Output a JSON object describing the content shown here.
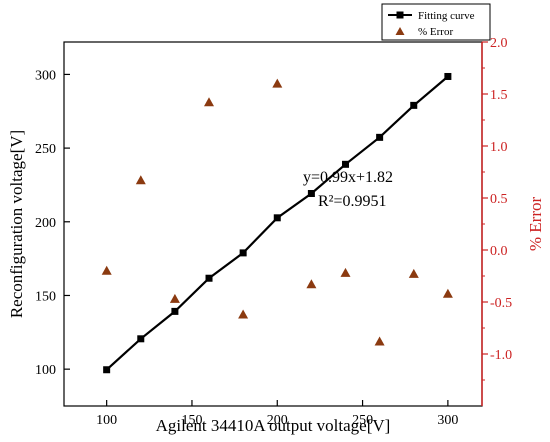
{
  "chart_data": {
    "type": "scatter",
    "xlabel": "Agilent 34410A output voltage[V]",
    "ylabel_left": "Reconfiguration voltage[V]",
    "ylabel_right": "% Error",
    "x_ticks": [
      "100",
      "150",
      "200",
      "250",
      "300"
    ],
    "y_left_ticks": [
      "100",
      "150",
      "200",
      "250",
      "300"
    ],
    "y_right_ticks": [
      "-1.0",
      "-0.5",
      "0.0",
      "0.5",
      "1.0",
      "1.5",
      "2.0"
    ],
    "xlim": [
      75,
      320
    ],
    "ylim_left": [
      75,
      322
    ],
    "ylim_right": [
      -1.5,
      2.0
    ],
    "grid": false,
    "legend_position": "top-right",
    "right_axis_color": "#cc2222",
    "series": [
      {
        "name": "Fitting curve",
        "kind": "line-with-square-markers",
        "color": "#000000",
        "x": [
          100,
          120,
          140,
          160,
          180,
          200,
          220,
          240,
          260,
          280,
          300
        ],
        "y": [
          99.6,
          120.6,
          139.2,
          161.7,
          178.9,
          202.7,
          219.2,
          239.0,
          257.3,
          279.0,
          298.6
        ]
      },
      {
        "name": "% Error",
        "kind": "triangle-markers",
        "axis": "right",
        "color": "#8b3a10",
        "x": [
          100,
          120,
          140,
          160,
          180,
          200,
          220,
          240,
          260,
          280,
          300
        ],
        "y": [
          -0.2,
          0.67,
          -0.47,
          1.42,
          -0.62,
          1.6,
          -0.33,
          -0.22,
          -0.88,
          -0.23,
          -0.42
        ]
      }
    ],
    "annotations": [
      "y=0.99x+1.82",
      "R²=0.9951"
    ]
  }
}
